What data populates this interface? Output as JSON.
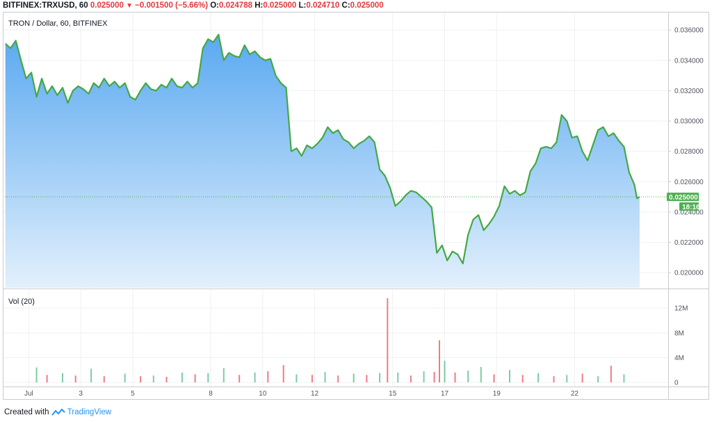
{
  "header": {
    "symbol": "BITFINEX:TRXUSD, 60",
    "last": "0.025000",
    "change": "−0.001500 (−5.66%)",
    "open_label": "O:",
    "open": "0.024788",
    "high_label": "H:",
    "high": "0.025000",
    "low_label": "L:",
    "low": "0.024710",
    "close_label": "C:",
    "close": "0.025000"
  },
  "legend": {
    "main": "TRON / Dollar, 60, BITFINEX",
    "volume": "Vol (20)"
  },
  "price_badge": {
    "value": "0.025000",
    "countdown": "18:16"
  },
  "footer": {
    "created_with": "Created with",
    "brand": "TradingView"
  },
  "colors": {
    "line": "#43a843",
    "fill_top": "#5aa9f1",
    "fill_bottom": "#e3f0fc",
    "up": "#53b987",
    "down": "#eb4d5c",
    "badge": "#4caf50",
    "text_down": "#e0393e"
  },
  "chart_data": [
    {
      "type": "area",
      "title": "TRON / Dollar, 60, BITFINEX",
      "x_unit": "day of July (60-minute candles)",
      "ylim": [
        0.019,
        0.0372
      ],
      "y_ticks": [
        "0.020000",
        "0.022000",
        "0.024000",
        "0.026000",
        "0.028000",
        "0.030000",
        "0.032000",
        "0.034000",
        "0.036000"
      ],
      "y_tick_values": [
        0.02,
        0.022,
        0.024,
        0.026,
        0.028,
        0.03,
        0.032,
        0.034,
        0.036
      ],
      "x_ticks": [
        "Jul",
        "3",
        "5",
        "8",
        "10",
        "12",
        "15",
        "17",
        "19",
        "22"
      ],
      "x_tick_values": [
        1,
        3,
        5,
        8,
        10,
        12,
        15,
        17,
        19,
        22
      ],
      "last_price": 0.025,
      "grid": true,
      "series": [
        {
          "x": [
            0.1,
            0.3,
            0.5,
            0.7,
            0.9,
            1.1,
            1.3,
            1.5,
            1.7,
            1.9,
            2.1,
            2.3,
            2.5,
            2.7,
            2.9,
            3.1,
            3.3,
            3.5,
            3.7,
            3.9,
            4.1,
            4.3,
            4.5,
            4.7,
            4.9,
            5.1,
            5.3,
            5.5,
            5.7,
            5.9,
            6.1,
            6.3,
            6.5,
            6.7,
            6.9,
            7.1,
            7.3,
            7.5,
            7.7,
            7.9,
            8.1,
            8.3,
            8.5,
            8.7,
            8.9,
            9.1,
            9.3,
            9.5,
            9.7,
            9.9,
            10.1,
            10.3,
            10.5,
            10.7,
            10.9,
            11.1,
            11.3,
            11.5,
            11.7,
            11.9,
            12.1,
            12.3,
            12.5,
            12.7,
            12.9,
            13.1,
            13.3,
            13.5,
            13.7,
            13.9,
            14.1,
            14.3,
            14.5,
            14.7,
            14.9,
            15.1,
            15.3,
            15.5,
            15.7,
            15.9,
            16.1,
            16.3,
            16.5,
            16.7,
            16.9,
            17.1,
            17.3,
            17.5,
            17.7,
            17.9,
            18.1,
            18.3,
            18.5,
            18.7,
            18.9,
            19.1,
            19.3,
            19.5,
            19.7,
            19.9,
            20.1,
            20.3,
            20.5,
            20.7,
            20.9,
            21.1,
            21.3,
            21.5,
            21.7,
            21.9,
            22.1,
            22.3,
            22.5,
            22.7,
            22.9,
            23.1,
            23.3,
            23.5,
            23.7,
            23.9,
            24.1,
            24.3,
            24.4,
            24.5
          ],
          "values": [
            0.0351,
            0.0348,
            0.0353,
            0.034,
            0.0328,
            0.0332,
            0.0316,
            0.0328,
            0.0318,
            0.0323,
            0.0317,
            0.0322,
            0.0312,
            0.032,
            0.0323,
            0.0321,
            0.0318,
            0.0325,
            0.0322,
            0.0328,
            0.0323,
            0.0326,
            0.0322,
            0.0325,
            0.0316,
            0.0314,
            0.032,
            0.0325,
            0.0321,
            0.032,
            0.0324,
            0.0322,
            0.0328,
            0.0323,
            0.0322,
            0.0326,
            0.0322,
            0.0325,
            0.0348,
            0.0354,
            0.0352,
            0.0357,
            0.034,
            0.0345,
            0.0343,
            0.0342,
            0.035,
            0.0344,
            0.0346,
            0.0342,
            0.034,
            0.0341,
            0.033,
            0.0325,
            0.0322,
            0.028,
            0.0282,
            0.0277,
            0.0284,
            0.0282,
            0.0285,
            0.0289,
            0.0296,
            0.0292,
            0.0294,
            0.0288,
            0.0286,
            0.0282,
            0.0285,
            0.0287,
            0.029,
            0.0286,
            0.0268,
            0.0264,
            0.0256,
            0.0244,
            0.0247,
            0.0251,
            0.0254,
            0.0253,
            0.025,
            0.0247,
            0.0243,
            0.0213,
            0.0218,
            0.0208,
            0.0214,
            0.0212,
            0.0206,
            0.0225,
            0.0235,
            0.0238,
            0.0228,
            0.0232,
            0.0237,
            0.0244,
            0.0257,
            0.0252,
            0.0254,
            0.0251,
            0.0253,
            0.0267,
            0.0272,
            0.0282,
            0.0283,
            0.0282,
            0.0286,
            0.0304,
            0.03,
            0.0289,
            0.029,
            0.028,
            0.0274,
            0.0284,
            0.0294,
            0.0296,
            0.029,
            0.0292,
            0.0287,
            0.0283,
            0.0266,
            0.0258,
            0.0249,
            0.025
          ]
        }
      ]
    },
    {
      "type": "bar",
      "title": "Vol (20)",
      "ylim": [
        0,
        14.5
      ],
      "y_ticks": [
        "0",
        "4M",
        "8M",
        "12M"
      ],
      "y_tick_values": [
        0,
        4,
        8,
        12
      ],
      "unit": "M",
      "up_color": "#53b987",
      "down_color": "#eb4d5c",
      "x": [
        1.3,
        1.7,
        2.3,
        2.8,
        3.4,
        3.9,
        4.7,
        5.3,
        5.8,
        6.3,
        6.9,
        7.4,
        7.9,
        8.5,
        9.1,
        9.7,
        10.2,
        10.8,
        11.3,
        11.9,
        12.4,
        12.9,
        13.5,
        14.0,
        14.5,
        14.8,
        15.2,
        15.7,
        16.2,
        16.6,
        16.8,
        17.0,
        17.4,
        17.9,
        18.4,
        18.9,
        19.5,
        20.0,
        20.6,
        21.2,
        21.7,
        22.3,
        22.9,
        23.4,
        23.9
      ],
      "values": [
        2.4,
        1.2,
        1.5,
        1.1,
        2.2,
        1.0,
        1.4,
        1.0,
        1.1,
        0.9,
        1.6,
        1.3,
        1.5,
        2.3,
        1.2,
        1.6,
        1.8,
        2.8,
        1.3,
        1.2,
        1.7,
        1.1,
        1.4,
        1.2,
        1.5,
        13.6,
        1.6,
        1.1,
        1.8,
        1.7,
        6.8,
        3.5,
        1.6,
        1.9,
        2.5,
        1.3,
        2.0,
        1.2,
        1.5,
        1.0,
        1.2,
        1.4,
        1.0,
        2.7,
        1.3
      ],
      "direction": [
        "u",
        "d",
        "u",
        "d",
        "u",
        "d",
        "u",
        "d",
        "u",
        "d",
        "u",
        "d",
        "u",
        "u",
        "d",
        "u",
        "d",
        "d",
        "u",
        "d",
        "u",
        "d",
        "u",
        "d",
        "u",
        "d",
        "u",
        "d",
        "u",
        "d",
        "d",
        "u",
        "d",
        "u",
        "u",
        "d",
        "u",
        "d",
        "u",
        "d",
        "u",
        "d",
        "u",
        "d",
        "u"
      ]
    }
  ]
}
